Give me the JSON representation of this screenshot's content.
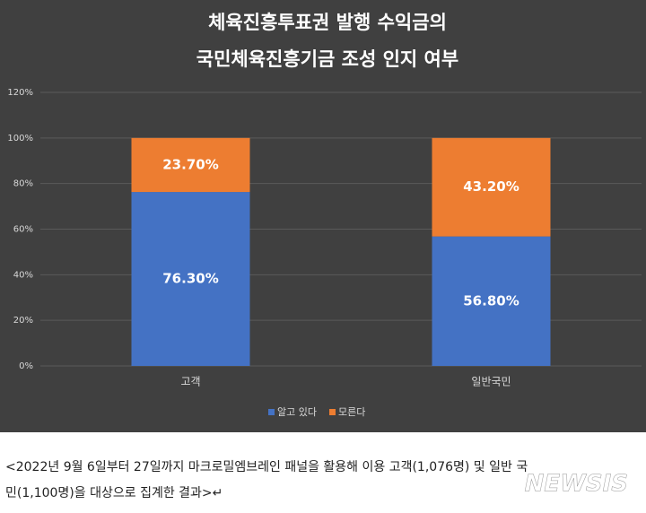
{
  "chart_data": {
    "type": "stacked_bar",
    "title": [
      "체육진흥투표권 발행 수익금의",
      "국민체육진흥기금 조성 인지 여부"
    ],
    "categories": [
      "고객",
      "일반국민"
    ],
    "series": [
      {
        "name": "알고 있다",
        "color": "#4472c4",
        "values": [
          76.3,
          56.8
        ],
        "value_labels": [
          "76.30%",
          "56.80%"
        ]
      },
      {
        "name": "모른다",
        "color": "#ed7d31",
        "values": [
          23.7,
          43.2
        ],
        "value_labels": [
          "23.70%",
          "43.20%"
        ]
      }
    ],
    "ylim": [
      0,
      120
    ],
    "yticks": [
      {
        "value": 0,
        "label": "0%"
      },
      {
        "value": 20,
        "label": "20%"
      },
      {
        "value": 40,
        "label": "40%"
      },
      {
        "value": 60,
        "label": "60%"
      },
      {
        "value": 80,
        "label": "80%"
      },
      {
        "value": 100,
        "label": "100%"
      },
      {
        "value": 120,
        "label": "120%"
      }
    ],
    "grid": true,
    "legend": "bottom"
  },
  "caption": {
    "lines": [
      "<2022년 9월 6일부터 27일까지 마크로밀엠브레인 패널을 활용해 이용 고객(1,076명) 및 일반 국",
      "민(1,100명)을 대상으로 집계한 결과>↵"
    ]
  },
  "watermark": "NEWSIS"
}
